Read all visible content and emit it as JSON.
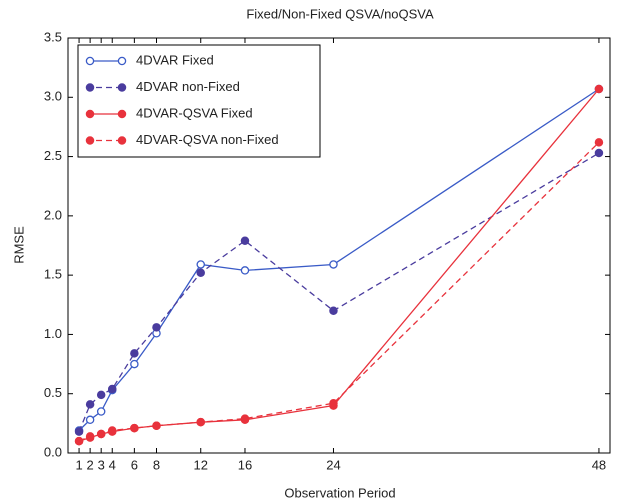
{
  "chart_data": {
    "type": "line",
    "title": "Fixed/Non-Fixed QSVA/noQSVA",
    "x_label": "Observation Period",
    "y_label": "RMSE",
    "x": [
      1,
      2,
      3,
      4,
      6,
      8,
      12,
      16,
      24,
      48
    ],
    "xlim": [
      0,
      49
    ],
    "xticks": [
      1,
      2,
      3,
      4,
      6,
      8,
      12,
      16,
      24,
      48
    ],
    "ylim": [
      0,
      3.5
    ],
    "yticks": [
      {
        "value": 0,
        "label": "0.0"
      },
      0.5,
      {
        "value": 1,
        "label": "1.0"
      },
      1.5,
      {
        "value": 2,
        "label": "2.0"
      },
      2.5,
      {
        "value": 3,
        "label": "3.0"
      },
      3.5
    ],
    "grid": false,
    "legend": "upper left",
    "series": [
      {
        "name": "4DVAR Fixed",
        "color": "#3a5bc7",
        "linestyle": "solid",
        "marker_filled": false,
        "values": [
          0.19,
          0.28,
          0.35,
          0.53,
          0.75,
          1.01,
          1.59,
          1.54,
          1.59,
          3.07
        ]
      },
      {
        "name": "4DVAR non-Fixed",
        "color": "#4a3c9e",
        "linestyle": "dashed",
        "marker_filled": true,
        "values": [
          0.18,
          0.41,
          0.49,
          0.54,
          0.84,
          1.06,
          1.52,
          1.79,
          1.2,
          2.53
        ]
      },
      {
        "name": "4DVAR-QSVA Fixed",
        "color": "#e8323c",
        "linestyle": "solid",
        "marker_filled": true,
        "values": [
          0.1,
          0.13,
          0.16,
          0.18,
          0.21,
          0.23,
          0.26,
          0.28,
          0.4,
          3.07
        ]
      },
      {
        "name": "4DVAR-QSVA non-Fixed",
        "color": "#e8323c",
        "linestyle": "dashed",
        "marker_filled": true,
        "values": [
          0.1,
          0.14,
          0.16,
          0.19,
          0.21,
          0.23,
          0.26,
          0.29,
          0.42,
          2.62
        ]
      }
    ]
  }
}
